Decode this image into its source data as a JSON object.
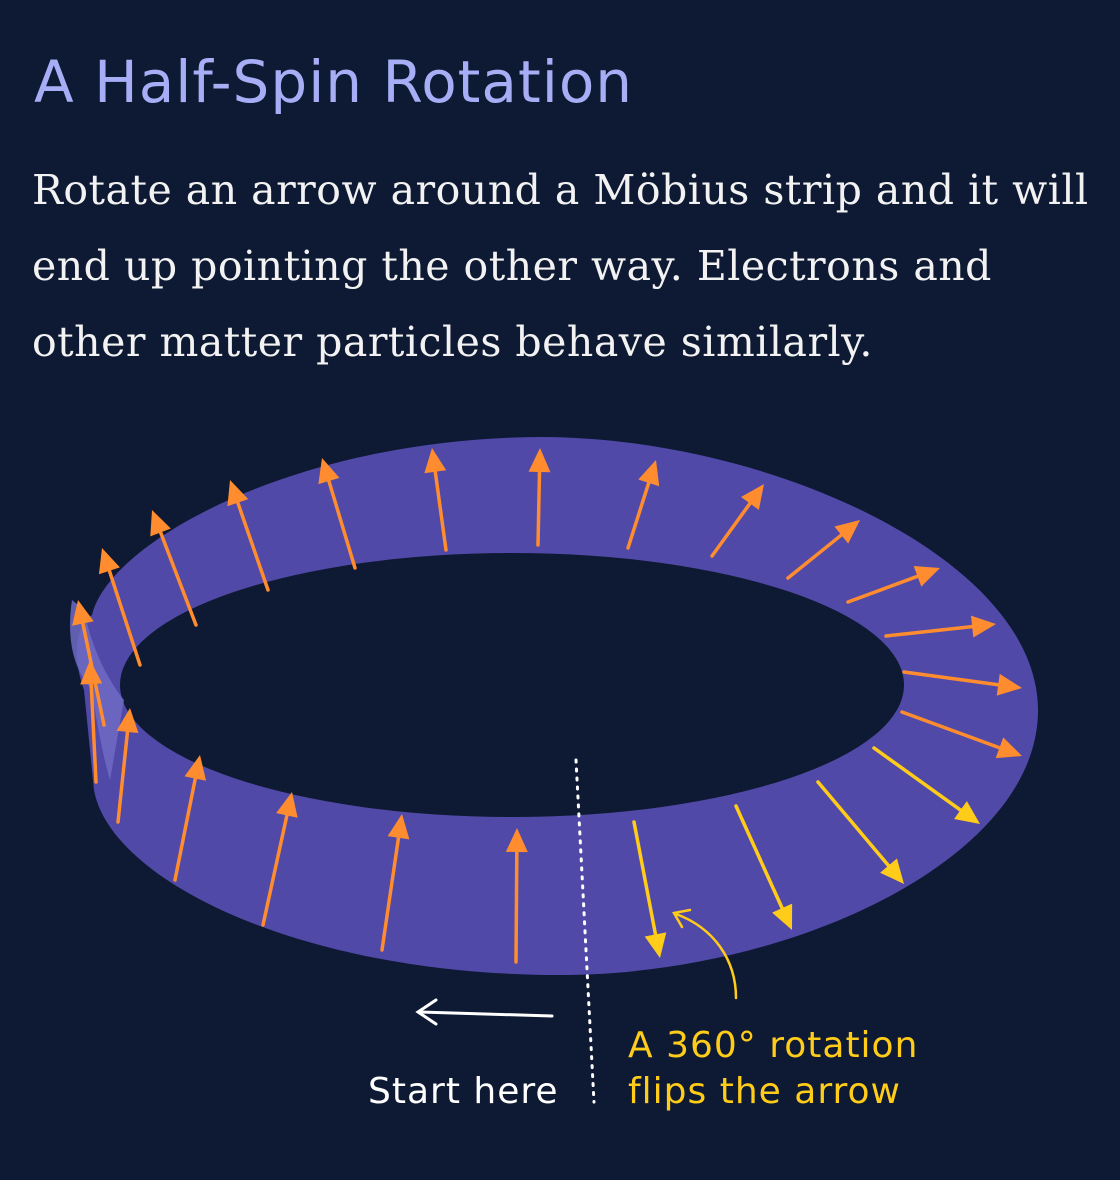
{
  "title": "A Half-Spin Rotation",
  "description": "Rotate an arrow around a Möbius strip and it will end up pointing the other way. Electrons and other matter particles behave similarly.",
  "labels": {
    "start": "Start here",
    "flip_line1": "A 360° rotation",
    "flip_line2": "flips the arrow"
  },
  "colors": {
    "background": "#0e1a33",
    "title": "#a7aef6",
    "strip": "#5149a8",
    "arrow_upright": "#ff8c2e",
    "arrow_flipped": "#ffcc1a",
    "annotation": "#ffffff"
  }
}
